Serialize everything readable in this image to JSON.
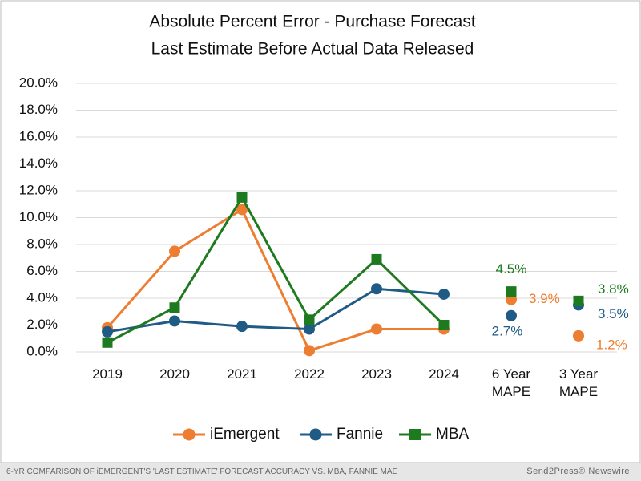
{
  "chart_data": {
    "type": "line",
    "title": "Absolute Percent Error -  Purchase Forecast",
    "subtitle": "Last Estimate Before Actual Data Released",
    "categories": [
      "2019",
      "2020",
      "2021",
      "2022",
      "2023",
      "2024"
    ],
    "summary_categories": [
      "6 Year MAPE",
      "3 Year MAPE"
    ],
    "series": [
      {
        "name": "iEmergent",
        "color": "#ed7d31",
        "marker": "circle",
        "values": [
          1.8,
          7.5,
          10.6,
          0.1,
          1.7,
          1.7
        ],
        "summary_values": [
          3.9,
          1.2
        ],
        "summary_value_labels": [
          "3.9%",
          "1.2%"
        ]
      },
      {
        "name": "Fannie",
        "color": "#1f5b85",
        "marker": "circle",
        "values": [
          1.5,
          2.3,
          1.9,
          1.7,
          4.7,
          4.3
        ],
        "summary_values": [
          2.7,
          3.5
        ],
        "summary_value_labels": [
          "2.7%",
          "3.5%"
        ]
      },
      {
        "name": "MBA",
        "color": "#1e7a1e",
        "marker": "square",
        "values": [
          0.7,
          3.3,
          11.5,
          2.4,
          6.9,
          2.0
        ],
        "summary_values": [
          4.5,
          3.8
        ],
        "summary_value_labels": [
          "4.5%",
          "3.8%"
        ]
      }
    ],
    "ylim": [
      0,
      20
    ],
    "yticks": [
      {
        "value": 0,
        "label": "0.0%"
      },
      {
        "value": 2,
        "label": "2.0%"
      },
      {
        "value": 4,
        "label": "4.0%"
      },
      {
        "value": 6,
        "label": "6.0%"
      },
      {
        "value": 8,
        "label": "8.0%"
      },
      {
        "value": 10,
        "label": "10.0%"
      },
      {
        "value": 12,
        "label": "12.0%"
      },
      {
        "value": 14,
        "label": "14.0%"
      },
      {
        "value": 16,
        "label": "16.0%"
      },
      {
        "value": 18,
        "label": "18.0%"
      },
      {
        "value": 20,
        "label": "20.0%"
      }
    ],
    "grid": true,
    "legend": "bottom"
  },
  "footer": {
    "caption": "6-YR COMPARISON OF iEMERGENT'S 'LAST ESTIMATE' FORECAST ACCURACY VS. MBA, FANNIE MAE",
    "credit": "Send2Press® Newswire"
  }
}
